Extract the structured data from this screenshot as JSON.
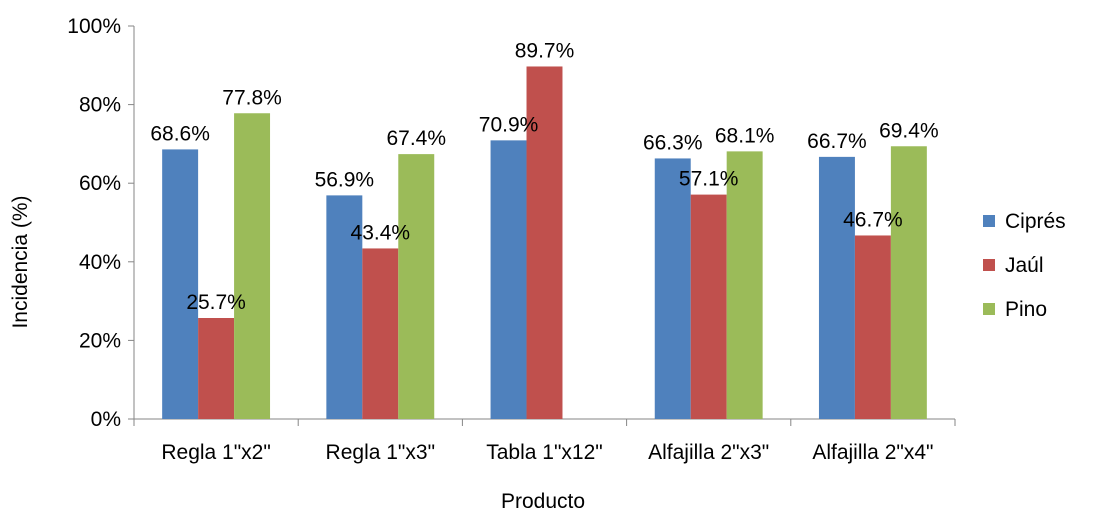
{
  "chart_data": {
    "type": "bar",
    "xlabel": "Producto",
    "ylabel": "Incidencia (%)",
    "ylim": [
      0,
      100
    ],
    "y_ticks": [
      "0%",
      "20%",
      "40%",
      "60%",
      "80%",
      "100%"
    ],
    "grid": false,
    "legend_position": "right",
    "categories": [
      "Regla 1\"x2\"",
      "Regla 1\"x3\"",
      "Tabla 1\"x12\"",
      "Alfajilla 2\"x3\"",
      "Alfajilla 2\"x4\""
    ],
    "series": [
      {
        "name": "Ciprés",
        "color": "#4F81BD",
        "values": [
          68.6,
          56.9,
          70.9,
          66.3,
          66.7
        ],
        "labels": [
          "68.6%",
          "56.9%",
          "70.9%",
          "66.3%",
          "66.7%"
        ]
      },
      {
        "name": "Jaúl",
        "color": "#C0504D",
        "values": [
          25.7,
          43.4,
          89.7,
          57.1,
          46.7
        ],
        "labels": [
          "25.7%",
          "43.4%",
          "89.7%",
          "57.1%",
          "46.7%"
        ]
      },
      {
        "name": "Pino",
        "color": "#9BBB59",
        "values": [
          77.8,
          67.4,
          null,
          68.1,
          69.4
        ],
        "labels": [
          "77.8%",
          "67.4%",
          null,
          "68.1%",
          "69.4%"
        ]
      }
    ]
  }
}
